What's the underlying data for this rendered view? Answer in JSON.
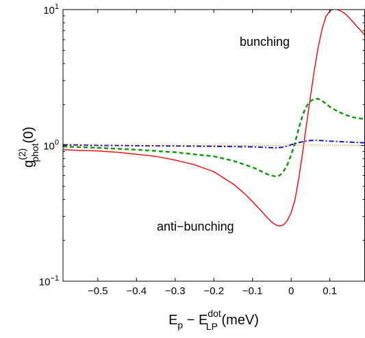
{
  "chart_data": {
    "type": "line",
    "xlabel": {
      "base": "E",
      "base_sub": "p",
      "minus": " − E",
      "sup": "dot",
      "sub": "LP",
      "unit": " (meV)"
    },
    "ylabel": {
      "base": "g",
      "sup": "(2)",
      "sub": "phot",
      "arg": "(0)"
    },
    "xlim": [
      -0.59,
      0.19
    ],
    "ylim": [
      0.1,
      10
    ],
    "yscale": "log",
    "grid": false,
    "xticks": [
      -0.5,
      -0.4,
      -0.3,
      -0.2,
      -0.1,
      0,
      0.1
    ],
    "xtick_labels": [
      "−0.5",
      "−0.4",
      "−0.3",
      "−0.2",
      "−0.1",
      "0",
      "0.1"
    ],
    "yticks": [
      {
        "value": 0.1,
        "base": "10",
        "exp": "−1"
      },
      {
        "value": 1,
        "base": "10",
        "exp": "0"
      },
      {
        "value": 10,
        "base": "10",
        "exp": "1"
      }
    ],
    "annotations": [
      {
        "id": "bunching",
        "text": "bunching",
        "x": 0.02,
        "y": 5.1
      },
      {
        "id": "anti-bunching",
        "text": "anti−bunching",
        "x": -0.2,
        "y": 0.25
      }
    ],
    "series": [
      {
        "id": "red-solid",
        "color": "#ee1111",
        "dash": "",
        "width": 1.5,
        "x": [
          -0.59,
          -0.55,
          -0.5,
          -0.45,
          -0.4,
          -0.35,
          -0.3,
          -0.25,
          -0.2,
          -0.15,
          -0.12,
          -0.1,
          -0.08,
          -0.06,
          -0.05,
          -0.04,
          -0.03,
          -0.02,
          -0.01,
          0.0,
          0.01,
          0.02,
          0.03,
          0.04,
          0.05,
          0.06,
          0.07,
          0.08,
          0.09,
          0.1,
          0.11,
          0.12,
          0.13,
          0.14,
          0.15,
          0.16,
          0.17,
          0.18,
          0.19
        ],
        "y": [
          0.93,
          0.92,
          0.91,
          0.89,
          0.86,
          0.83,
          0.78,
          0.72,
          0.64,
          0.52,
          0.44,
          0.385,
          0.335,
          0.29,
          0.272,
          0.26,
          0.255,
          0.26,
          0.28,
          0.32,
          0.4,
          0.58,
          0.9,
          1.45,
          2.3,
          3.6,
          5.3,
          7.2,
          8.9,
          9.8,
          10.1,
          10.0,
          9.7,
          9.3,
          8.7,
          8.1,
          7.5,
          7.0,
          6.5
        ]
      },
      {
        "id": "green-dashed",
        "color": "#119911",
        "dash": "6,4",
        "width": 2.5,
        "x": [
          -0.59,
          -0.5,
          -0.4,
          -0.3,
          -0.2,
          -0.15,
          -0.1,
          -0.08,
          -0.06,
          -0.05,
          -0.04,
          -0.03,
          -0.02,
          -0.01,
          0.0,
          0.01,
          0.02,
          0.03,
          0.04,
          0.05,
          0.06,
          0.07,
          0.08,
          0.09,
          0.1,
          0.12,
          0.14,
          0.16,
          0.19
        ],
        "y": [
          0.98,
          0.96,
          0.93,
          0.89,
          0.83,
          0.77,
          0.69,
          0.65,
          0.61,
          0.6,
          0.59,
          0.6,
          0.64,
          0.72,
          0.85,
          1.05,
          1.35,
          1.68,
          1.95,
          2.12,
          2.2,
          2.2,
          2.13,
          2.03,
          1.92,
          1.78,
          1.68,
          1.61,
          1.56
        ]
      },
      {
        "id": "blue-dashdot",
        "color": "#1111cc",
        "dash": "7,3,2,3",
        "width": 2,
        "x": [
          -0.59,
          -0.5,
          -0.4,
          -0.3,
          -0.2,
          -0.1,
          -0.06,
          -0.04,
          -0.02,
          0.0,
          0.02,
          0.04,
          0.06,
          0.08,
          0.1,
          0.13,
          0.16,
          0.19
        ],
        "y": [
          1.01,
          1.0,
          0.995,
          0.99,
          0.985,
          0.975,
          0.965,
          0.96,
          0.97,
          1.01,
          1.05,
          1.08,
          1.09,
          1.085,
          1.075,
          1.065,
          1.055,
          1.045
        ]
      },
      {
        "id": "orange-dotted",
        "color": "#e08a20",
        "dash": "1,2",
        "width": 1.2,
        "x": [
          -0.59,
          -0.4,
          -0.2,
          -0.05,
          0.0,
          0.05,
          0.1,
          0.19
        ],
        "y": [
          1.0,
          1.0,
          1.0,
          0.998,
          1.0,
          1.005,
          1.003,
          1.0
        ]
      }
    ]
  }
}
